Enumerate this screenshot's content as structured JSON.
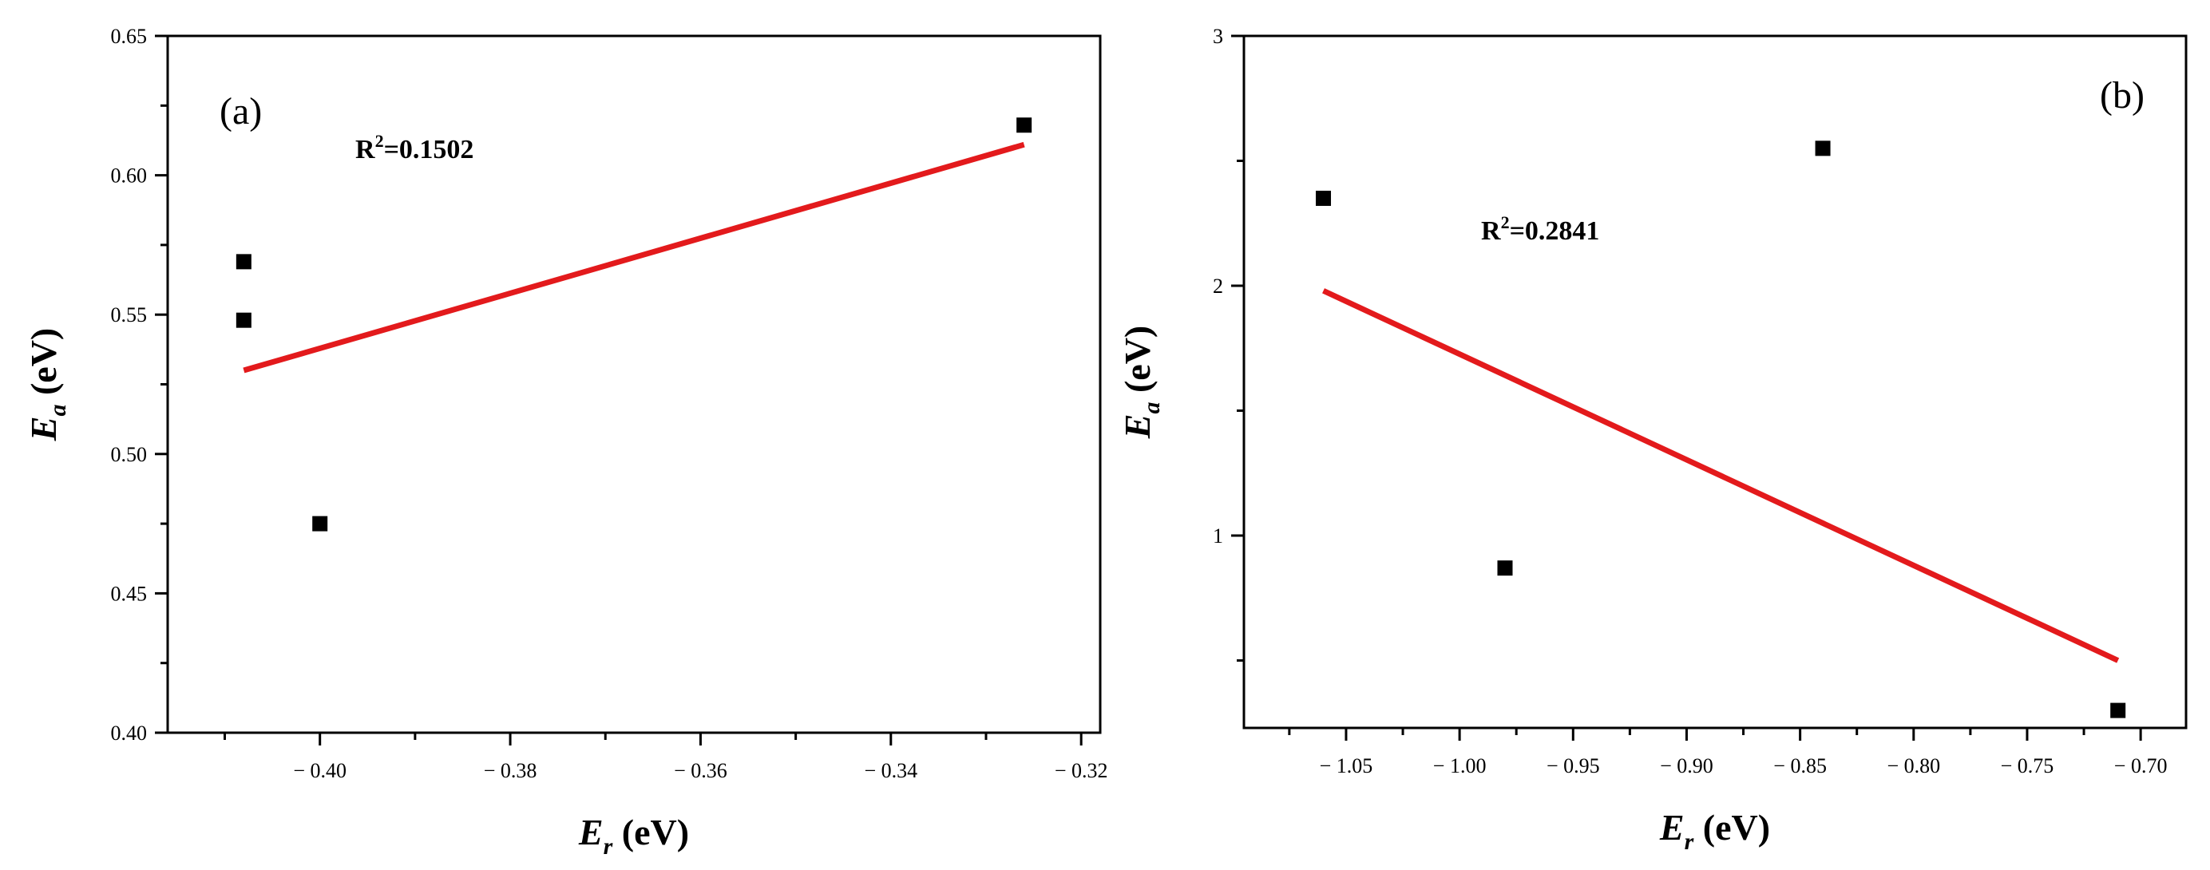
{
  "chart_data": [
    {
      "type": "scatter",
      "panel_label": "(a)",
      "xlabel": "E",
      "xlabel_sub": "r",
      "xlabel_unit": " (eV)",
      "ylabel": "E",
      "ylabel_sub": "a",
      "ylabel_unit": " (eV)",
      "xlim": [
        -0.416,
        -0.318
      ],
      "ylim": [
        0.4,
        0.65
      ],
      "xticks": [
        -0.4,
        -0.38,
        -0.36,
        -0.34,
        -0.32
      ],
      "xtick_labels": [
        "− 0.40",
        "− 0.38",
        "− 0.36",
        "− 0.34",
        "− 0.32"
      ],
      "yticks": [
        0.4,
        0.45,
        0.5,
        0.55,
        0.6,
        0.65
      ],
      "ytick_labels": [
        "0.40",
        "0.45",
        "0.50",
        "0.55",
        "0.60",
        "0.65"
      ],
      "points": {
        "x": [
          -0.408,
          -0.408,
          -0.4,
          -0.326
        ],
        "y": [
          0.569,
          0.548,
          0.475,
          0.618
        ]
      },
      "fit_line": {
        "x": [
          -0.408,
          -0.326
        ],
        "y": [
          0.53,
          0.611
        ]
      },
      "r2_prefix": "R",
      "r2_exp": "2",
      "r2_value": "=0.1502",
      "marker_color": "#000000",
      "line_color": "#e31a1c"
    },
    {
      "type": "scatter",
      "panel_label": "(b)",
      "xlabel": "E",
      "xlabel_sub": "r",
      "xlabel_unit": " (eV)",
      "ylabel": "E",
      "ylabel_sub": "a",
      "ylabel_unit": " (eV)",
      "xlim": [
        -1.095,
        -0.68
      ],
      "ylim": [
        0.23,
        3.0
      ],
      "xticks": [
        -1.05,
        -1.0,
        -0.95,
        -0.9,
        -0.85,
        -0.8,
        -0.75,
        -0.7
      ],
      "xtick_labels": [
        "− 1.05",
        "− 1.00",
        "− 0.95",
        "− 0.90",
        "− 0.85",
        "− 0.80",
        "− 0.75",
        "− 0.70"
      ],
      "yticks": [
        1,
        2,
        3
      ],
      "ytick_labels": [
        "1",
        "2",
        "3"
      ],
      "points": {
        "x": [
          -1.06,
          -0.98,
          -0.84,
          -0.71
        ],
        "y": [
          2.35,
          0.87,
          2.55,
          0.3
        ]
      },
      "fit_line": {
        "x": [
          -1.06,
          -0.71
        ],
        "y": [
          1.98,
          0.5
        ]
      },
      "r2_prefix": "R",
      "r2_exp": "2",
      "r2_value": "=0.2841",
      "marker_color": "#000000",
      "line_color": "#e31a1c"
    }
  ]
}
